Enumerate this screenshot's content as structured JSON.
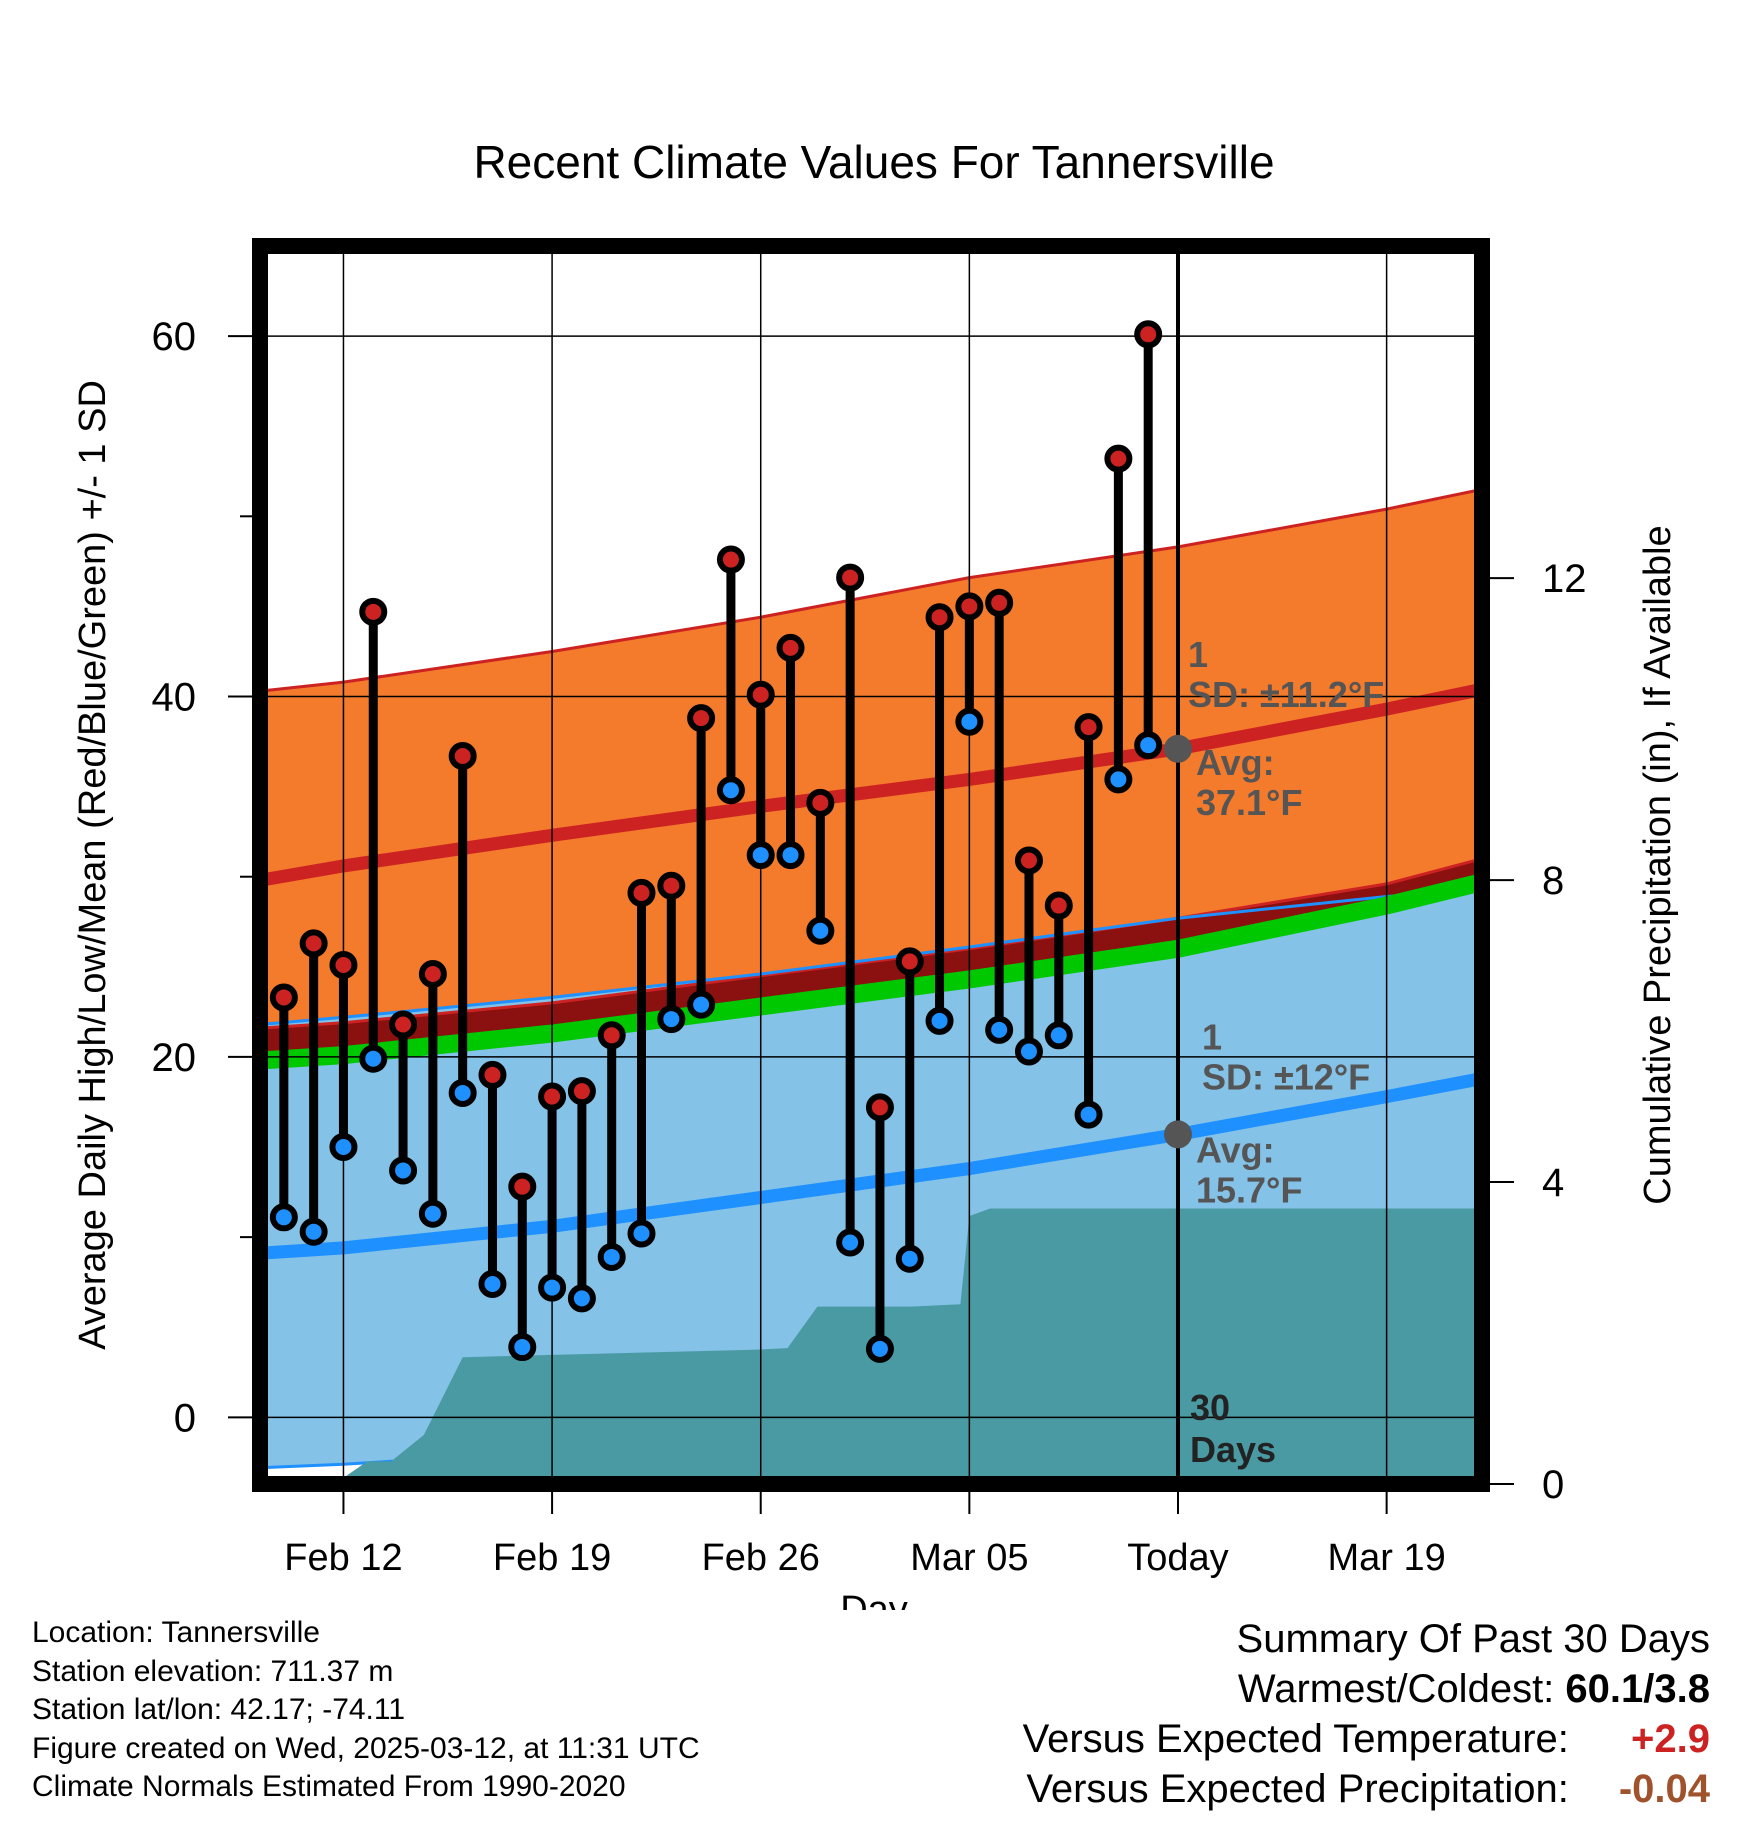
{
  "chart_data": {
    "type": "line",
    "title": "Recent Climate Values For Tannersville",
    "xlabel": "Day",
    "ylabel_left": "Average Daily High/Low/Mean (Red/Blue/Green) +/- 1 SD",
    "ylabel_right": "Cumulative Precipitation (in), If Available",
    "x_ticks": [
      {
        "day": 0,
        "label": "Feb 12"
      },
      {
        "day": 7,
        "label": "Feb 19"
      },
      {
        "day": 14,
        "label": "Feb 26"
      },
      {
        "day": 21,
        "label": "Mar 05"
      },
      {
        "day": 28,
        "label": "Today"
      },
      {
        "day": 35,
        "label": "Mar 19"
      }
    ],
    "x_range_days": [
      -2.8,
      38.2
    ],
    "today_day": 28,
    "ylim_left": [
      -3.7,
      65
    ],
    "y_ticks_left": [
      0,
      20,
      40,
      60
    ],
    "ylim_right": [
      0,
      16.4
    ],
    "y_ticks_right": [
      0,
      4,
      8,
      12
    ],
    "grid": true,
    "normals": {
      "day": [
        -2.8,
        0,
        7,
        14,
        21,
        28,
        35,
        38.2
      ],
      "high_mean": [
        29.8,
        30.6,
        32.3,
        33.9,
        35.4,
        37.1,
        39.3,
        40.4
      ],
      "high_sd_upper": [
        40.3,
        40.8,
        42.5,
        44.4,
        46.6,
        48.3,
        50.4,
        51.5
      ],
      "high_sd_lower": [
        21.6,
        21.9,
        23.0,
        24.5,
        26.0,
        27.7,
        29.6,
        31.0
      ],
      "low_mean": [
        9.1,
        9.4,
        10.6,
        12.2,
        13.8,
        15.7,
        17.8,
        18.8
      ],
      "low_sd_upper": [
        21.8,
        22.2,
        23.3,
        24.6,
        26.1,
        27.7,
        28.9,
        29.3
      ],
      "low_sd_lower": [
        -2.8,
        -2.6,
        -1.9,
        -0.8,
        0.3,
        1.4,
        5.8,
        7.9
      ],
      "avg_mean": [
        19.8,
        20.1,
        21.3,
        22.8,
        24.3,
        26.0,
        28.4,
        29.7
      ]
    },
    "series": [
      {
        "name": "High",
        "color": "#cc2222",
        "day": [
          -2,
          -1,
          0,
          1,
          2,
          3,
          4,
          5,
          6,
          7,
          8,
          9,
          10,
          11,
          12,
          13,
          14,
          15,
          16,
          17,
          18,
          19,
          20,
          21,
          22,
          23,
          24,
          25,
          26,
          27
        ],
        "values": [
          23.3,
          26.3,
          25.1,
          44.7,
          21.8,
          24.6,
          36.7,
          19.0,
          12.8,
          17.8,
          18.1,
          21.2,
          29.1,
          29.5,
          38.8,
          47.6,
          40.1,
          42.7,
          34.1,
          46.6,
          17.2,
          25.3,
          44.4,
          45.0,
          45.2,
          30.9,
          28.4,
          38.3,
          53.2,
          60.1
        ]
      },
      {
        "name": "Low",
        "color": "#1e90ff",
        "day": [
          -2,
          -1,
          0,
          1,
          2,
          3,
          4,
          5,
          6,
          7,
          8,
          9,
          10,
          11,
          12,
          13,
          14,
          15,
          16,
          17,
          18,
          19,
          20,
          21,
          22,
          23,
          24,
          25,
          26,
          27
        ],
        "values": [
          11.1,
          10.3,
          15.0,
          19.9,
          13.7,
          11.3,
          18.0,
          7.4,
          3.9,
          7.2,
          6.6,
          8.9,
          10.2,
          22.1,
          22.9,
          34.8,
          31.2,
          31.2,
          27.0,
          9.7,
          3.8,
          8.8,
          22.0,
          38.6,
          21.5,
          20.3,
          21.2,
          16.8,
          35.4,
          37.3
        ]
      }
    ],
    "precipitation": {
      "day": [
        -2.8,
        -0.3,
        0.8,
        1.6,
        2.7,
        4.0,
        13.9,
        14.9,
        15.9,
        19.0,
        20.7,
        21.0,
        21.7,
        38.2
      ],
      "cumulative_in": [
        0,
        0,
        0.3,
        0.3,
        0.65,
        1.68,
        1.78,
        1.8,
        2.35,
        2.35,
        2.38,
        3.55,
        3.65,
        3.65
      ]
    },
    "annotations": {
      "high_sd": "1 SD: ±11.2°F",
      "high_avg": "Avg: 37.1°F",
      "low_sd": "1 SD: ±12°F",
      "low_avg": "Avg: 15.7°F",
      "window": "30 Days"
    },
    "colors": {
      "high_band": "#f47a2c",
      "high_line": "#cc2222",
      "low_band": "#84c2e8",
      "low_line": "#1e90ff",
      "avg_line": "#00c800",
      "overlap": "#8b1010",
      "precip": "#4a9aa3",
      "annotation": "#555555"
    }
  },
  "info": {
    "location": "Location: Tannersville",
    "elevation": "Station elevation: 711.37 m",
    "latlon": "Station lat/lon: 42.17; -74.11",
    "created": "Figure created on Wed, 2025-03-12, at 11:31 UTC",
    "normals": "Climate Normals Estimated From 1990-2020"
  },
  "summary": {
    "heading": "Summary Of Past 30 Days",
    "warmest_label": "Warmest/Coldest:",
    "warmest_value": "60.1/3.8",
    "temp_label": "Versus Expected Temperature:",
    "temp_value": "+2.9",
    "precip_label": "Versus Expected Precipitation:",
    "precip_value": "-0.04"
  }
}
